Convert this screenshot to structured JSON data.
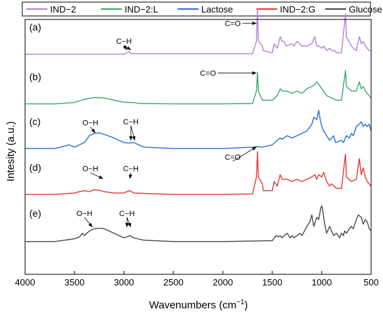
{
  "chart_data": {
    "type": "line",
    "xlabel": "Wavenumbers (cm",
    "xlabel_sup": "−1",
    "xlabel_close": ")",
    "ylabel": "Intesity (a.u.)",
    "xlim": [
      4000,
      500
    ],
    "x_ticks": [
      "4000",
      "3500",
      "3000",
      "2500",
      "2000",
      "1500",
      "1000",
      "500"
    ],
    "legend": {
      "position": "top"
    },
    "series": [
      {
        "name": "IND−2",
        "panel": "(a)",
        "color": "#b87fd8",
        "offset": 0.86,
        "points": [
          [
            4000,
            0.02
          ],
          [
            3000,
            0.02
          ],
          [
            2975,
            0.05
          ],
          [
            2950,
            0.08
          ],
          [
            2930,
            0.04
          ],
          [
            2900,
            0.03
          ],
          [
            1700,
            0.03
          ],
          [
            1660,
            0.3
          ],
          [
            1650,
            1.0
          ],
          [
            1640,
            0.3
          ],
          [
            1600,
            0.2
          ],
          [
            1590,
            0.1
          ],
          [
            1500,
            0.05
          ],
          [
            1480,
            0.25
          ],
          [
            1450,
            0.15
          ],
          [
            1420,
            0.4
          ],
          [
            1400,
            0.3
          ],
          [
            1380,
            0.3
          ],
          [
            1360,
            0.2
          ],
          [
            1300,
            0.25
          ],
          [
            1280,
            0.2
          ],
          [
            1250,
            0.3
          ],
          [
            1200,
            0.2
          ],
          [
            1150,
            0.2
          ],
          [
            1100,
            0.25
          ],
          [
            1070,
            0.4
          ],
          [
            1050,
            0.2
          ],
          [
            1030,
            0.2
          ],
          [
            1000,
            0.15
          ],
          [
            980,
            0.2
          ],
          [
            950,
            0.1
          ],
          [
            920,
            0.15
          ],
          [
            900,
            0.1
          ],
          [
            870,
            0.1
          ],
          [
            850,
            0.05
          ],
          [
            800,
            0.05
          ],
          [
            760,
            0.9
          ],
          [
            750,
            0.4
          ],
          [
            700,
            0.2
          ],
          [
            680,
            0.15
          ],
          [
            650,
            0.1
          ],
          [
            620,
            0.4
          ],
          [
            600,
            0.25
          ],
          [
            580,
            0.3
          ],
          [
            560,
            0.2
          ],
          [
            540,
            0.15
          ],
          [
            520,
            0.1
          ],
          [
            500,
            0.1
          ]
        ]
      },
      {
        "name": "IND−2:L",
        "panel": "(b)",
        "color": "#3da86e",
        "offset": 0.665,
        "points": [
          [
            4000,
            0.02
          ],
          [
            3700,
            0.02
          ],
          [
            3500,
            0.05
          ],
          [
            3400,
            0.12
          ],
          [
            3300,
            0.16
          ],
          [
            3200,
            0.15
          ],
          [
            3100,
            0.1
          ],
          [
            3000,
            0.06
          ],
          [
            2950,
            0.05
          ],
          [
            2900,
            0.05
          ],
          [
            2850,
            0.03
          ],
          [
            2500,
            0.02
          ],
          [
            2000,
            0.02
          ],
          [
            1700,
            0.03
          ],
          [
            1660,
            0.3
          ],
          [
            1650,
            0.7
          ],
          [
            1640,
            0.3
          ],
          [
            1600,
            0.1
          ],
          [
            1500,
            0.1
          ],
          [
            1450,
            0.2
          ],
          [
            1420,
            0.35
          ],
          [
            1400,
            0.3
          ],
          [
            1350,
            0.3
          ],
          [
            1300,
            0.25
          ],
          [
            1250,
            0.3
          ],
          [
            1200,
            0.25
          ],
          [
            1150,
            0.35
          ],
          [
            1100,
            0.4
          ],
          [
            1070,
            0.45
          ],
          [
            1050,
            0.5
          ],
          [
            1030,
            0.45
          ],
          [
            1000,
            0.35
          ],
          [
            980,
            0.3
          ],
          [
            950,
            0.2
          ],
          [
            900,
            0.15
          ],
          [
            850,
            0.1
          ],
          [
            800,
            0.1
          ],
          [
            760,
            0.75
          ],
          [
            750,
            0.4
          ],
          [
            700,
            0.3
          ],
          [
            650,
            0.3
          ],
          [
            620,
            0.5
          ],
          [
            600,
            0.35
          ],
          [
            580,
            0.4
          ],
          [
            560,
            0.3
          ],
          [
            540,
            0.25
          ],
          [
            500,
            0.15
          ]
        ]
      },
      {
        "name": "Lactose",
        "panel": "(c)",
        "color": "#2a6fd6",
        "offset": 0.49,
        "points": [
          [
            4000,
            0.02
          ],
          [
            3700,
            0.02
          ],
          [
            3550,
            0.1
          ],
          [
            3500,
            0.05
          ],
          [
            3450,
            0.1
          ],
          [
            3400,
            0.15
          ],
          [
            3350,
            0.3
          ],
          [
            3300,
            0.35
          ],
          [
            3250,
            0.36
          ],
          [
            3200,
            0.33
          ],
          [
            3100,
            0.25
          ],
          [
            3000,
            0.15
          ],
          [
            2950,
            0.14
          ],
          [
            2900,
            0.15
          ],
          [
            2850,
            0.1
          ],
          [
            2800,
            0.05
          ],
          [
            2500,
            0.02
          ],
          [
            2000,
            0.02
          ],
          [
            1700,
            0.05
          ],
          [
            1650,
            0.06
          ],
          [
            1600,
            0.05
          ],
          [
            1500,
            0.1
          ],
          [
            1450,
            0.2
          ],
          [
            1420,
            0.25
          ],
          [
            1400,
            0.22
          ],
          [
            1350,
            0.3
          ],
          [
            1300,
            0.25
          ],
          [
            1250,
            0.3
          ],
          [
            1200,
            0.35
          ],
          [
            1150,
            0.4
          ],
          [
            1100,
            0.55
          ],
          [
            1080,
            0.7
          ],
          [
            1050,
            0.65
          ],
          [
            1030,
            0.85
          ],
          [
            1020,
            0.7
          ],
          [
            1000,
            0.5
          ],
          [
            980,
            0.4
          ],
          [
            950,
            0.3
          ],
          [
            920,
            0.2
          ],
          [
            900,
            0.25
          ],
          [
            880,
            0.3
          ],
          [
            860,
            0.15
          ],
          [
            800,
            0.2
          ],
          [
            780,
            0.15
          ],
          [
            750,
            0.3
          ],
          [
            720,
            0.25
          ],
          [
            700,
            0.35
          ],
          [
            680,
            0.3
          ],
          [
            650,
            0.5
          ],
          [
            620,
            0.55
          ],
          [
            600,
            0.6
          ],
          [
            580,
            0.5
          ],
          [
            560,
            0.55
          ],
          [
            540,
            0.5
          ],
          [
            520,
            0.55
          ],
          [
            500,
            0.4
          ]
        ]
      },
      {
        "name": "IND−2:G",
        "panel": "(d)",
        "color": "#e03a3a",
        "offset": 0.31,
        "points": [
          [
            4000,
            0.02
          ],
          [
            3700,
            0.02
          ],
          [
            3500,
            0.05
          ],
          [
            3450,
            0.08
          ],
          [
            3400,
            0.1
          ],
          [
            3350,
            0.08
          ],
          [
            3300,
            0.12
          ],
          [
            3250,
            0.11
          ],
          [
            3200,
            0.08
          ],
          [
            3100,
            0.05
          ],
          [
            3000,
            0.05
          ],
          [
            2970,
            0.08
          ],
          [
            2940,
            0.1
          ],
          [
            2900,
            0.05
          ],
          [
            2500,
            0.02
          ],
          [
            2000,
            0.02
          ],
          [
            1700,
            0.03
          ],
          [
            1660,
            0.4
          ],
          [
            1650,
            0.95
          ],
          [
            1640,
            0.4
          ],
          [
            1600,
            0.25
          ],
          [
            1590,
            0.1
          ],
          [
            1500,
            0.1
          ],
          [
            1480,
            0.3
          ],
          [
            1450,
            0.2
          ],
          [
            1420,
            0.45
          ],
          [
            1400,
            0.35
          ],
          [
            1350,
            0.35
          ],
          [
            1300,
            0.3
          ],
          [
            1250,
            0.35
          ],
          [
            1200,
            0.3
          ],
          [
            1150,
            0.35
          ],
          [
            1100,
            0.4
          ],
          [
            1070,
            0.45
          ],
          [
            1050,
            0.35
          ],
          [
            1030,
            0.45
          ],
          [
            1000,
            0.4
          ],
          [
            980,
            0.5
          ],
          [
            950,
            0.3
          ],
          [
            920,
            0.2
          ],
          [
            900,
            0.25
          ],
          [
            850,
            0.15
          ],
          [
            800,
            0.15
          ],
          [
            760,
            0.9
          ],
          [
            750,
            0.4
          ],
          [
            700,
            0.3
          ],
          [
            650,
            0.35
          ],
          [
            620,
            0.8
          ],
          [
            600,
            0.45
          ],
          [
            580,
            0.6
          ],
          [
            560,
            0.4
          ],
          [
            540,
            0.3
          ],
          [
            500,
            0.2
          ]
        ]
      },
      {
        "name": "Glucose",
        "panel": "(e)",
        "color": "#4a4a4a",
        "offset": 0.125,
        "points": [
          [
            4000,
            0.02
          ],
          [
            3700,
            0.02
          ],
          [
            3500,
            0.08
          ],
          [
            3450,
            0.12
          ],
          [
            3420,
            0.2
          ],
          [
            3400,
            0.15
          ],
          [
            3350,
            0.25
          ],
          [
            3300,
            0.3
          ],
          [
            3250,
            0.31
          ],
          [
            3200,
            0.3
          ],
          [
            3100,
            0.2
          ],
          [
            3000,
            0.1
          ],
          [
            2960,
            0.13
          ],
          [
            2940,
            0.15
          ],
          [
            2900,
            0.1
          ],
          [
            2800,
            0.05
          ],
          [
            2500,
            0.02
          ],
          [
            2000,
            0.02
          ],
          [
            1500,
            0.04
          ],
          [
            1480,
            0.1
          ],
          [
            1460,
            0.15
          ],
          [
            1440,
            0.12
          ],
          [
            1420,
            0.15
          ],
          [
            1400,
            0.1
          ],
          [
            1380,
            0.15
          ],
          [
            1350,
            0.2
          ],
          [
            1320,
            0.1
          ],
          [
            1300,
            0.15
          ],
          [
            1280,
            0.1
          ],
          [
            1250,
            0.15
          ],
          [
            1220,
            0.2
          ],
          [
            1200,
            0.15
          ],
          [
            1150,
            0.35
          ],
          [
            1120,
            0.45
          ],
          [
            1100,
            0.6
          ],
          [
            1080,
            0.35
          ],
          [
            1050,
            0.55
          ],
          [
            1030,
            0.5
          ],
          [
            1010,
            0.75
          ],
          [
            1000,
            0.8
          ],
          [
            990,
            0.7
          ],
          [
            970,
            0.4
          ],
          [
            950,
            0.2
          ],
          [
            920,
            0.35
          ],
          [
            900,
            0.25
          ],
          [
            880,
            0.15
          ],
          [
            850,
            0.2
          ],
          [
            820,
            0.1
          ],
          [
            800,
            0.2
          ],
          [
            780,
            0.15
          ],
          [
            770,
            0.25
          ],
          [
            750,
            0.2
          ],
          [
            720,
            0.3
          ],
          [
            700,
            0.35
          ],
          [
            680,
            0.3
          ],
          [
            650,
            0.5
          ],
          [
            630,
            0.6
          ],
          [
            600,
            0.55
          ],
          [
            580,
            0.4
          ],
          [
            560,
            0.5
          ],
          [
            540,
            0.45
          ],
          [
            520,
            0.3
          ],
          [
            500,
            0.25
          ]
        ]
      }
    ],
    "panel_labels": [
      {
        "text": "(a)",
        "y": 0.97
      },
      {
        "text": "(b)",
        "y": 0.775
      },
      {
        "text": "(c)",
        "y": 0.6
      },
      {
        "text": "(d)",
        "y": 0.42
      },
      {
        "text": "(e)",
        "y": 0.24
      }
    ],
    "annotations": [
      {
        "text": "C=O",
        "x": 1900,
        "y": 0.985,
        "arrow_to": [
          1660,
          0.985
        ]
      },
      {
        "text": "C−H",
        "x": 3000,
        "y": 0.915,
        "arrows_to": [
          [
            2975,
            0.88
          ],
          [
            2930,
            0.88
          ]
        ]
      },
      {
        "text": "C=O",
        "x": 2150,
        "y": 0.79,
        "arrow_to": [
          1660,
          0.79
        ]
      },
      {
        "text": "O−H",
        "x": 3340,
        "y": 0.595,
        "arrow_to": [
          3290,
          0.555
        ]
      },
      {
        "text": "C−H",
        "x": 2930,
        "y": 0.6,
        "arrows_to": [
          [
            2930,
            0.525
          ],
          [
            2890,
            0.525
          ]
        ]
      },
      {
        "text": "C=O",
        "x": 1900,
        "y": 0.46,
        "arrow_to": [
          1660,
          0.5
        ]
      },
      {
        "text": "O−H",
        "x": 3340,
        "y": 0.415,
        "arrow_to": [
          3210,
          0.375
        ]
      },
      {
        "text": "C−H",
        "x": 2930,
        "y": 0.415,
        "arrow_to": [
          2940,
          0.375
        ]
      },
      {
        "text": "O−H",
        "x": 3400,
        "y": 0.24,
        "arrow_to": [
          3320,
          0.185
        ]
      },
      {
        "text": "C−H",
        "x": 2970,
        "y": 0.24,
        "arrows_to": [
          [
            2970,
            0.185
          ],
          [
            2930,
            0.185
          ]
        ]
      }
    ]
  }
}
